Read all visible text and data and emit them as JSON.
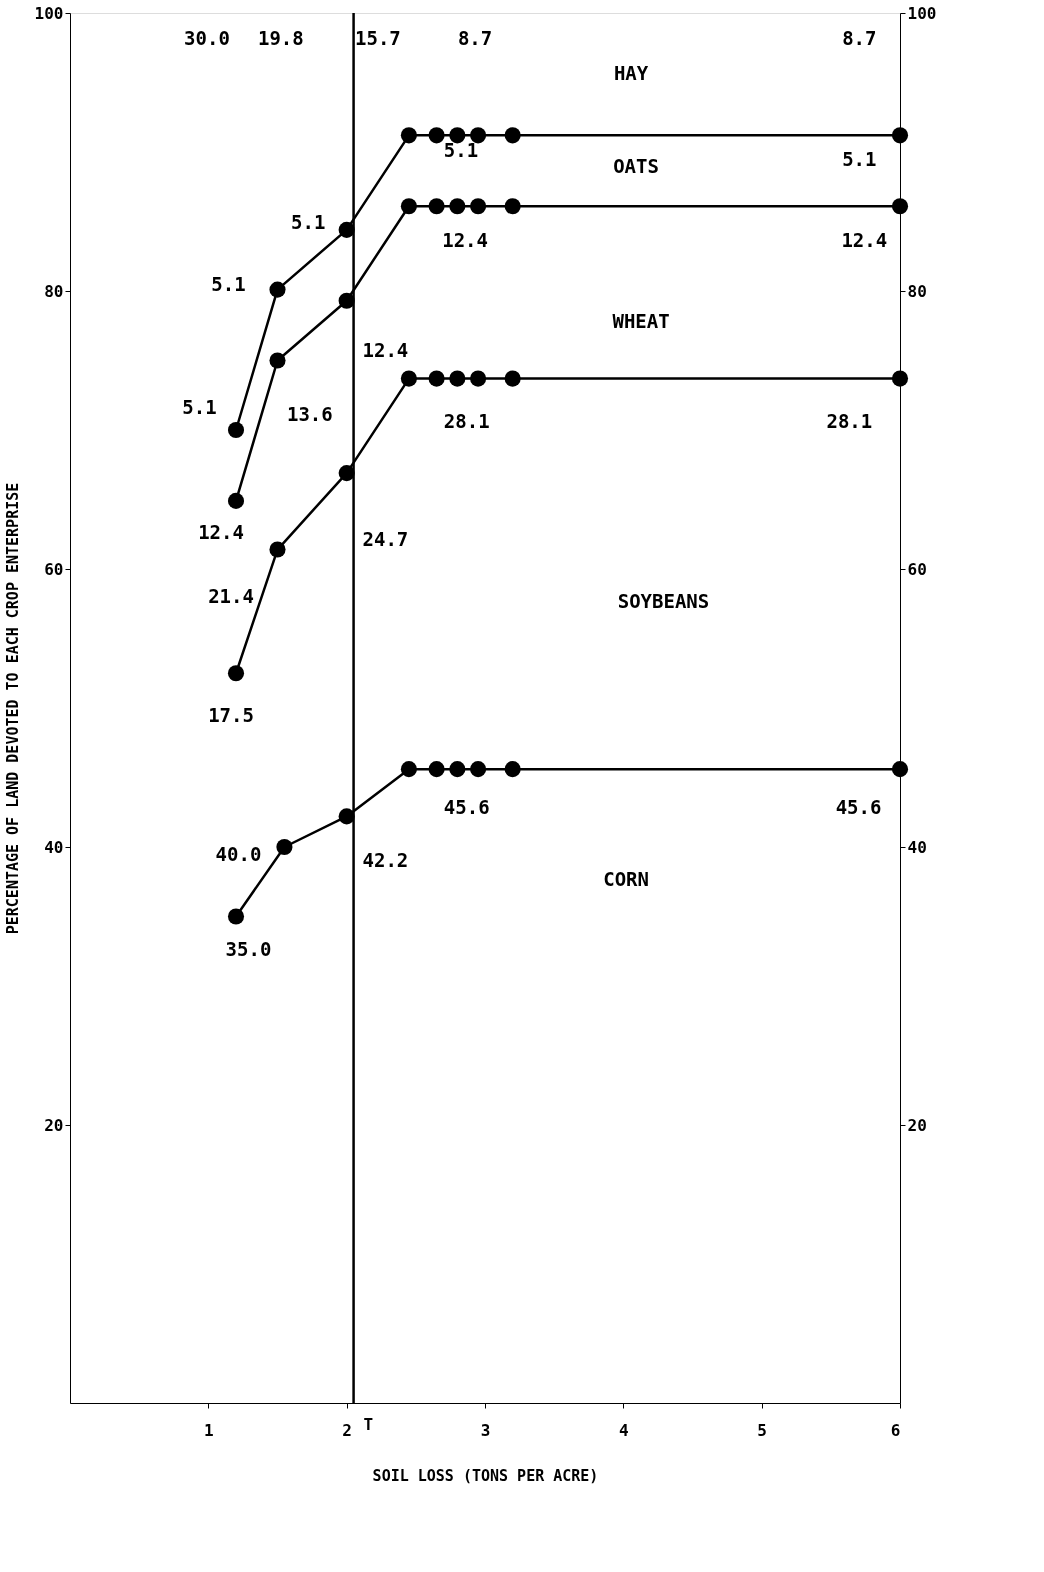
{
  "chart_data": {
    "type": "line",
    "xlabel": "SOIL LOSS (TONS PER ACRE)",
    "ylabel": "PERCENTAGE OF LAND DEVOTED TO EACH CROP ENTERPRISE",
    "x": [
      1.2,
      1.5,
      2.0,
      2.45,
      2.65,
      2.8,
      2.95,
      3.2,
      6.0
    ],
    "series": [
      {
        "color": "#000000",
        "x": [
          1.2,
          1.55,
          2.0,
          2.45,
          2.65,
          2.8,
          2.95,
          3.2,
          6.0
        ],
        "values": [
          35.0,
          40.0,
          42.2,
          45.6,
          45.6,
          45.6,
          45.6,
          45.6,
          45.6
        ]
      },
      {
        "color": "#000000",
        "values": [
          52.5,
          61.4,
          66.9,
          73.7,
          73.7,
          73.7,
          73.7,
          73.7,
          73.7
        ]
      },
      {
        "color": "#000000",
        "values": [
          64.9,
          75.0,
          79.3,
          86.1,
          86.1,
          86.1,
          86.1,
          86.1,
          86.1
        ]
      },
      {
        "color": "#000000",
        "values": [
          70.0,
          80.1,
          84.4,
          91.2,
          91.2,
          91.2,
          91.2,
          91.2,
          91.2
        ]
      }
    ],
    "xlim": [
      0,
      6
    ],
    "xticks": [
      1,
      2,
      3,
      4,
      5,
      6
    ],
    "ylim": [
      0,
      100
    ],
    "yticks": [
      20,
      40,
      60,
      80,
      100
    ],
    "y2lim": [
      0,
      100
    ],
    "y2ticks": [
      20,
      40,
      60,
      80,
      100
    ],
    "marker": "circle",
    "line_style": "solid",
    "grid": false,
    "legend": false,
    "ref_lines": [
      {
        "axis": "x",
        "value": 2.05,
        "label": "T",
        "color": "#000000"
      }
    ],
    "annotations": [
      "30.0",
      "19.8",
      "15.7",
      "8.7",
      "8.7",
      "HAY",
      "5.1",
      "5.1",
      "OATS",
      "5.1",
      "5.1",
      "5.1",
      "12.4",
      "12.4",
      "WHEAT",
      "12.4",
      "13.6",
      "12.4",
      "28.1",
      "28.1",
      "24.7",
      "21.4",
      "17.5",
      "SOYBEANS",
      "45.6",
      "45.6",
      "40.0",
      "42.2",
      "35.0",
      "CORN"
    ]
  }
}
